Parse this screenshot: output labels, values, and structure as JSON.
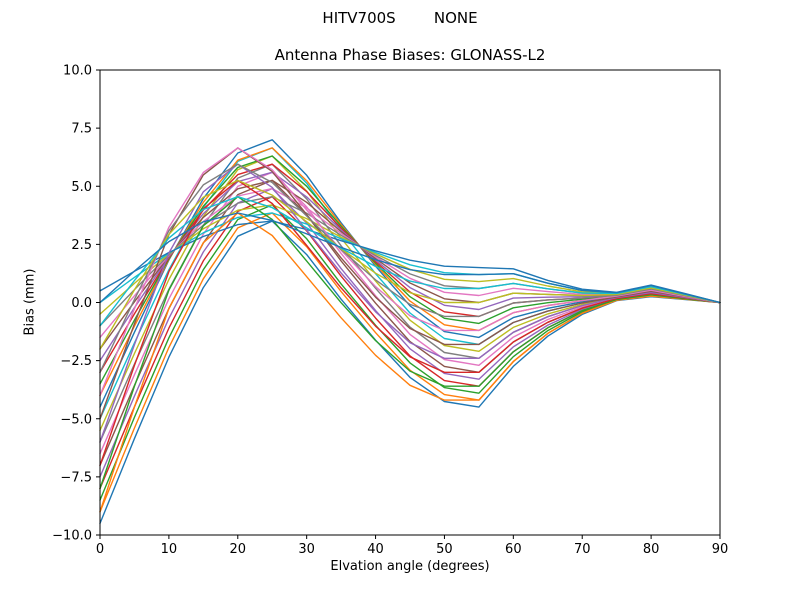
{
  "header": {
    "suptitle": "HITV700S        NONE",
    "title": "Antenna Phase Biases: GLONASS-L2"
  },
  "chart_data": {
    "type": "line",
    "suptitle": "HITV700S        NONE",
    "title": "Antenna Phase Biases: GLONASS-L2",
    "xlabel": "Elvation angle (degrees)",
    "ylabel": "Bias (mm)",
    "xlim": [
      0,
      90
    ],
    "ylim": [
      -10,
      10
    ],
    "grid": false,
    "legend": "none",
    "xticks": [
      0,
      10,
      20,
      30,
      40,
      50,
      60,
      70,
      80,
      90
    ],
    "xtick_labels": [
      "0",
      "10",
      "20",
      "30",
      "40",
      "50",
      "60",
      "70",
      "80",
      "90"
    ],
    "yticks": [
      -10,
      -7.5,
      -5,
      -2.5,
      0,
      2.5,
      5,
      7.5,
      10
    ],
    "ytick_labels": [
      "−10.0",
      "−7.5",
      "−5.0",
      "−2.5",
      "0.0",
      "2.5",
      "5.0",
      "7.5",
      "10.0"
    ],
    "palette": [
      "#1f77b4",
      "#ff7f0e",
      "#2ca02c",
      "#d62728",
      "#9467bd",
      "#8c564b",
      "#e377c2",
      "#7f7f7f",
      "#bcbd22",
      "#17becf"
    ],
    "x": [
      0,
      5,
      10,
      15,
      20,
      25,
      30,
      35,
      40,
      45,
      50,
      55,
      60,
      65,
      70,
      75,
      80,
      85,
      90
    ],
    "series": [
      {
        "values": [
          -9.5,
          -5.86,
          -2.35,
          0.64,
          2.85,
          3.5,
          2.06,
          0.14,
          -1.62,
          -3.22,
          -4.26,
          -4.5,
          -2.75,
          -1.45,
          -0.51,
          0.08,
          0.25,
          0.13,
          0
        ]
      },
      {
        "values": [
          -9.0,
          -5.4,
          -1.93,
          1.02,
          3.21,
          3.85,
          2.4,
          0.47,
          -1.3,
          -2.91,
          -3.96,
          -4.2,
          -2.54,
          -1.33,
          -0.46,
          0.1,
          0.28,
          0.14,
          0
        ]
      },
      {
        "values": [
          -8.5,
          -4.94,
          -1.52,
          1.41,
          3.57,
          4.2,
          2.74,
          0.8,
          -0.98,
          -2.6,
          -3.66,
          -3.9,
          -2.33,
          -1.21,
          -0.4,
          0.12,
          0.3,
          0.15,
          0
        ]
      },
      {
        "values": [
          -8.0,
          -4.49,
          -1.1,
          1.79,
          3.92,
          4.55,
          3.08,
          1.13,
          -0.67,
          -2.3,
          -3.36,
          -3.6,
          -2.12,
          -1.09,
          -0.35,
          0.13,
          0.33,
          0.16,
          0
        ]
      },
      {
        "values": [
          -7.5,
          -4.03,
          -0.68,
          2.17,
          4.28,
          4.9,
          3.42,
          1.46,
          -0.35,
          -1.99,
          -3.05,
          -3.3,
          -1.91,
          -0.97,
          -0.29,
          0.15,
          0.35,
          0.18,
          0
        ]
      },
      {
        "values": [
          -7.0,
          -3.57,
          -0.26,
          2.56,
          4.64,
          5.25,
          3.77,
          1.79,
          -0.03,
          -1.68,
          -2.75,
          -3.0,
          -1.7,
          -0.85,
          -0.24,
          0.17,
          0.38,
          0.19,
          0
        ]
      },
      {
        "values": [
          -6.5,
          -3.11,
          0.16,
          2.94,
          5.0,
          5.6,
          4.11,
          2.11,
          0.29,
          -1.37,
          -2.45,
          -2.7,
          -1.49,
          -0.73,
          -0.19,
          0.19,
          0.4,
          0.2,
          0
        ]
      },
      {
        "values": [
          -6.0,
          -2.65,
          0.57,
          3.32,
          5.35,
          5.95,
          4.45,
          2.44,
          0.61,
          -1.06,
          -2.15,
          -2.4,
          -1.28,
          -0.61,
          -0.13,
          0.21,
          0.43,
          0.21,
          0
        ]
      },
      {
        "values": [
          -5.5,
          -2.2,
          0.99,
          3.7,
          5.71,
          6.3,
          4.79,
          2.77,
          0.92,
          -0.76,
          -1.85,
          -2.1,
          -1.07,
          -0.49,
          -0.08,
          0.22,
          0.45,
          0.23,
          0
        ]
      },
      {
        "values": [
          -5.0,
          -1.74,
          1.41,
          4.09,
          6.07,
          6.65,
          5.13,
          3.1,
          1.24,
          -0.45,
          -1.55,
          -1.8,
          -0.86,
          -0.37,
          -0.02,
          0.24,
          0.48,
          0.24,
          0
        ]
      },
      {
        "values": [
          -4.5,
          -1.28,
          1.83,
          4.47,
          6.43,
          7.0,
          5.47,
          3.43,
          1.56,
          -0.14,
          -1.25,
          -1.5,
          -0.65,
          -0.25,
          0.03,
          0.26,
          0.5,
          0.25,
          0
        ]
      },
      {
        "values": [
          -4.0,
          -1.02,
          1.86,
          4.31,
          6.12,
          6.65,
          5.24,
          3.35,
          1.63,
          0.06,
          -0.96,
          -1.2,
          -0.44,
          -0.13,
          0.08,
          0.28,
          0.53,
          0.26,
          0
        ]
      },
      {
        "values": [
          -3.5,
          -0.76,
          1.89,
          4.14,
          5.81,
          6.3,
          5.0,
          3.28,
          1.69,
          0.25,
          -0.68,
          -0.9,
          -0.23,
          -0.01,
          0.14,
          0.3,
          0.55,
          0.28,
          0
        ]
      },
      {
        "values": [
          -3.0,
          -0.49,
          1.92,
          3.98,
          5.5,
          5.95,
          4.77,
          3.2,
          1.76,
          0.45,
          -0.4,
          -0.6,
          -0.02,
          0.11,
          0.19,
          0.31,
          0.58,
          0.29,
          0
        ]
      },
      {
        "values": [
          -2.5,
          -0.23,
          1.96,
          3.82,
          5.2,
          5.6,
          4.54,
          3.12,
          1.82,
          0.64,
          -0.12,
          -0.3,
          0.19,
          0.23,
          0.25,
          0.33,
          0.6,
          0.3,
          0
        ]
      },
      {
        "values": [
          -2.0,
          0.03,
          1.99,
          3.66,
          4.89,
          5.25,
          4.31,
          3.05,
          1.89,
          0.84,
          0.16,
          0.0,
          0.4,
          0.35,
          0.3,
          0.35,
          0.63,
          0.31,
          0
        ]
      },
      {
        "values": [
          -1.5,
          0.29,
          2.02,
          3.49,
          4.58,
          4.9,
          4.07,
          2.97,
          1.96,
          1.04,
          0.44,
          0.3,
          0.61,
          0.47,
          0.35,
          0.37,
          0.65,
          0.33,
          0
        ]
      },
      {
        "values": [
          -1.0,
          0.55,
          2.05,
          3.33,
          4.27,
          4.55,
          3.84,
          2.89,
          2.02,
          1.23,
          0.72,
          0.6,
          0.82,
          0.59,
          0.41,
          0.39,
          0.68,
          0.34,
          0
        ]
      },
      {
        "values": [
          -0.5,
          0.82,
          2.09,
          3.17,
          3.97,
          4.2,
          3.61,
          2.81,
          2.09,
          1.43,
          1.0,
          0.9,
          1.03,
          0.71,
          0.46,
          0.4,
          0.7,
          0.35,
          0
        ]
      },
      {
        "values": [
          0.0,
          1.08,
          2.12,
          3.0,
          3.66,
          3.85,
          3.37,
          2.74,
          2.15,
          1.62,
          1.28,
          1.2,
          1.24,
          0.83,
          0.52,
          0.42,
          0.73,
          0.36,
          0
        ]
      },
      {
        "values": [
          0.5,
          1.34,
          2.15,
          2.84,
          3.35,
          3.5,
          3.14,
          2.66,
          2.22,
          1.82,
          1.56,
          1.5,
          1.45,
          0.95,
          0.57,
          0.44,
          0.75,
          0.38,
          0
        ]
      },
      {
        "values": [
          -9.0,
          -4.5,
          -0.26,
          2.57,
          3.85,
          2.88,
          1.11,
          -0.66,
          -2.27,
          -3.56,
          -4.2,
          -4.2,
          -2.54,
          -1.33,
          -0.46,
          0.1,
          0.28,
          0.14,
          0
        ]
      },
      {
        "values": [
          -8.0,
          -3.61,
          0.53,
          3.3,
          4.55,
          3.57,
          1.78,
          -0.01,
          -1.64,
          -2.95,
          -3.6,
          -3.6,
          -2.12,
          -1.09,
          -0.35,
          0.13,
          0.33,
          0.16,
          0
        ]
      },
      {
        "values": [
          -7.0,
          -2.71,
          1.33,
          4.03,
          5.25,
          4.26,
          2.45,
          0.63,
          -1.02,
          -2.34,
          -3.0,
          -3.0,
          -1.7,
          -0.85,
          -0.24,
          0.17,
          0.38,
          0.19,
          0
        ]
      },
      {
        "values": [
          -6.0,
          -1.82,
          2.13,
          4.76,
          5.95,
          4.95,
          3.11,
          1.27,
          -0.4,
          -1.73,
          -2.4,
          -2.4,
          -1.28,
          -0.61,
          -0.13,
          0.21,
          0.43,
          0.21,
          0
        ]
      },
      {
        "values": [
          -5.0,
          -0.92,
          2.92,
          5.49,
          6.65,
          5.64,
          3.78,
          1.92,
          0.23,
          -1.12,
          -1.8,
          -1.8,
          -0.86,
          -0.37,
          -0.02,
          0.24,
          0.48,
          0.24,
          0
        ]
      },
      {
        "values": [
          -4.0,
          -0.27,
          3.24,
          5.59,
          6.65,
          5.71,
          3.98,
          2.25,
          0.68,
          -0.57,
          -1.2,
          -1.2,
          -0.44,
          -0.13,
          0.08,
          0.28,
          0.53,
          0.26,
          0
        ]
      },
      {
        "values": [
          -3.0,
          0.13,
          3.09,
          5.06,
          5.95,
          5.16,
          3.72,
          2.28,
          0.97,
          -0.08,
          -0.6,
          -0.6,
          -0.02,
          0.11,
          0.19,
          0.31,
          0.58,
          0.29,
          0
        ]
      },
      {
        "values": [
          -2.0,
          0.54,
          2.93,
          4.53,
          5.25,
          4.62,
          3.47,
          2.31,
          1.26,
          0.42,
          0.0,
          0.0,
          0.4,
          0.35,
          0.3,
          0.35,
          0.63,
          0.31,
          0
        ]
      },
      {
        "values": [
          -1.0,
          0.94,
          2.77,
          4.0,
          4.55,
          4.08,
          3.21,
          2.34,
          1.55,
          0.92,
          0.6,
          0.6,
          0.82,
          0.59,
          0.41,
          0.39,
          0.68,
          0.34,
          0
        ]
      },
      {
        "values": [
          0.0,
          1.35,
          2.62,
          3.47,
          3.85,
          3.53,
          2.95,
          2.37,
          1.84,
          1.41,
          1.2,
          1.2,
          1.24,
          0.83,
          0.52,
          0.42,
          0.73,
          0.36,
          0
        ]
      }
    ]
  }
}
